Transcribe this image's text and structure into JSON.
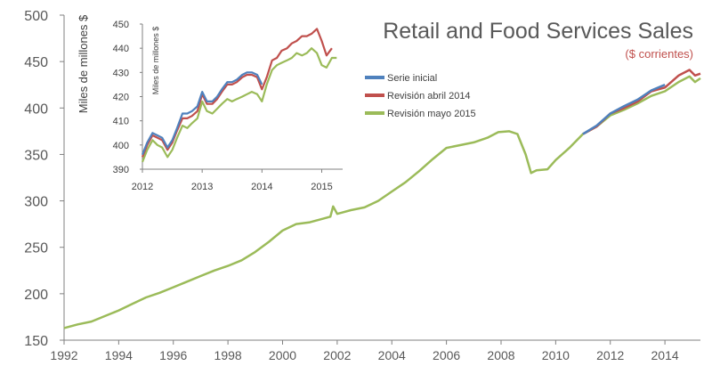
{
  "chart_data": [
    {
      "type": "line",
      "title": "Retail and Food Services Sales",
      "subtitle": "($ corrientes)",
      "xlabel": "",
      "ylabel": "Miles de millones $",
      "xlim": [
        1992,
        2015.3
      ],
      "ylim": [
        150,
        500
      ],
      "x_ticks": [
        "1992",
        "1994",
        "1996",
        "1998",
        "2000",
        "2002",
        "2004",
        "2006",
        "2008",
        "2010",
        "2012",
        "2014"
      ],
      "y_ticks": [
        "150",
        "200",
        "250",
        "300",
        "350",
        "400",
        "450",
        "500"
      ],
      "grid": false,
      "legend_position": "right",
      "series": [
        {
          "name": "Revisión mayo 2015",
          "color": "#9bbb59",
          "x": [
            1992.0,
            1992.5,
            1993.0,
            1993.5,
            1994.0,
            1994.5,
            1995.0,
            1995.5,
            1996.0,
            1996.5,
            1997.0,
            1997.5,
            1998.0,
            1998.5,
            1999.0,
            1999.5,
            2000.0,
            2000.5,
            2001.0,
            2001.5,
            2001.75,
            2001.85,
            2002.0,
            2002.5,
            2003.0,
            2003.5,
            2004.0,
            2004.5,
            2005.0,
            2005.5,
            2006.0,
            2006.5,
            2007.0,
            2007.5,
            2007.9,
            2008.3,
            2008.6,
            2008.9,
            2009.1,
            2009.3,
            2009.7,
            2010.0,
            2010.5,
            2011.0,
            2011.5,
            2012.0,
            2012.5,
            2013.0,
            2013.5,
            2014.0,
            2014.5,
            2014.9,
            2015.1,
            2015.3
          ],
          "values": [
            163,
            167,
            170,
            176,
            182,
            189,
            196,
            201,
            207,
            213,
            219,
            225,
            230,
            236,
            245,
            256,
            268,
            275,
            277,
            281,
            283,
            294,
            286,
            290,
            293,
            300,
            310,
            320,
            332,
            345,
            357,
            360,
            363,
            368,
            374,
            375,
            372,
            350,
            330,
            333,
            334,
            344,
            357,
            372,
            380,
            392,
            398,
            405,
            413,
            418,
            428,
            434,
            428,
            432
          ]
        },
        {
          "name": "Revisión abril 2014",
          "color": "#c0504d",
          "x": [
            2011.0,
            2011.5,
            2012.0,
            2012.5,
            2013.0,
            2013.5,
            2014.0,
            2014.5,
            2014.9,
            2015.1,
            2015.3
          ],
          "values": [
            372,
            380,
            394,
            400,
            407,
            418,
            422,
            435,
            441,
            435,
            437
          ]
        },
        {
          "name": "Serie inicial",
          "color": "#4f81bd",
          "x": [
            2011.0,
            2011.5,
            2012.0,
            2012.5,
            2013.0,
            2013.5,
            2014.0
          ],
          "values": [
            372,
            381,
            394,
            402,
            409,
            419,
            425
          ]
        }
      ]
    },
    {
      "type": "line",
      "title": "",
      "xlabel": "",
      "ylabel": "Miles de millones $",
      "xlim": [
        2012,
        2015.35
      ],
      "ylim": [
        390,
        450
      ],
      "x_ticks": [
        "2012",
        "2013",
        "2014",
        "2015"
      ],
      "y_ticks": [
        "390",
        "400",
        "410",
        "420",
        "430",
        "440",
        "450"
      ],
      "grid": false,
      "series": [
        {
          "name": "Serie inicial",
          "color": "#4f81bd",
          "x": [
            2012.0,
            2012.08,
            2012.17,
            2012.25,
            2012.33,
            2012.42,
            2012.5,
            2012.58,
            2012.67,
            2012.75,
            2012.83,
            2012.92,
            2013.0,
            2013.08,
            2013.17,
            2013.25,
            2013.33,
            2013.42,
            2013.5,
            2013.58,
            2013.67,
            2013.75,
            2013.83,
            2013.92,
            2014.0
          ],
          "values": [
            396,
            401,
            405,
            404,
            403,
            399,
            402,
            407,
            413,
            413,
            414,
            416,
            422,
            418,
            418,
            420,
            423,
            426,
            426,
            427,
            429,
            430,
            430,
            429,
            425
          ]
        },
        {
          "name": "Revisión abril 2014",
          "color": "#c0504d",
          "x": [
            2012.0,
            2012.08,
            2012.17,
            2012.25,
            2012.33,
            2012.42,
            2012.5,
            2012.58,
            2012.67,
            2012.75,
            2012.83,
            2012.92,
            2013.0,
            2013.08,
            2013.17,
            2013.25,
            2013.33,
            2013.42,
            2013.5,
            2013.58,
            2013.67,
            2013.75,
            2013.83,
            2013.92,
            2014.0,
            2014.08,
            2014.17,
            2014.25,
            2014.33,
            2014.42,
            2014.5,
            2014.58,
            2014.67,
            2014.75,
            2014.83,
            2014.92,
            2015.0,
            2015.08,
            2015.17
          ],
          "values": [
            395,
            400,
            404,
            403,
            402,
            398,
            401,
            406,
            411,
            411,
            412,
            414,
            421,
            417,
            417,
            419,
            422,
            425,
            425,
            426,
            428,
            429,
            429,
            428,
            423,
            428,
            435,
            436,
            439,
            440,
            442,
            443,
            445,
            445,
            446,
            448,
            443,
            437,
            440
          ]
        },
        {
          "name": "Revisión mayo 2015",
          "color": "#9bbb59",
          "x": [
            2012.0,
            2012.08,
            2012.17,
            2012.25,
            2012.33,
            2012.42,
            2012.5,
            2012.58,
            2012.67,
            2012.75,
            2012.83,
            2012.92,
            2013.0,
            2013.08,
            2013.17,
            2013.25,
            2013.33,
            2013.42,
            2013.5,
            2013.58,
            2013.67,
            2013.75,
            2013.83,
            2013.92,
            2014.0,
            2014.08,
            2014.17,
            2014.25,
            2014.33,
            2014.42,
            2014.5,
            2014.58,
            2014.67,
            2014.75,
            2014.83,
            2014.92,
            2015.0,
            2015.08,
            2015.17,
            2015.25
          ],
          "values": [
            393,
            398,
            402,
            400,
            399,
            395,
            398,
            403,
            408,
            407,
            409,
            411,
            418,
            414,
            413,
            415,
            417,
            419,
            418,
            419,
            420,
            421,
            422,
            421,
            418,
            425,
            431,
            433,
            434,
            435,
            436,
            438,
            437,
            438,
            440,
            438,
            433,
            432,
            436,
            436
          ]
        }
      ]
    }
  ]
}
